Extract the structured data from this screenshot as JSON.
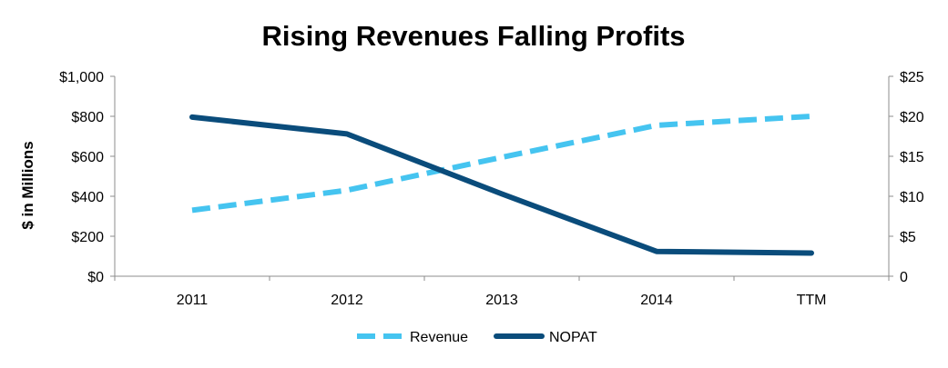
{
  "chart_data": {
    "type": "line",
    "title": "Rising Revenues Falling Profits",
    "ylabel": "$ in Millions",
    "categories": [
      "2011",
      "2012",
      "2013",
      "2014",
      "TTM"
    ],
    "y_left": {
      "lim": [
        0,
        1000
      ],
      "ticks": [
        0,
        200,
        400,
        600,
        800,
        1000
      ],
      "tick_labels": [
        "$0",
        "$200",
        "$400",
        "$600",
        "$800",
        "$1,000"
      ]
    },
    "y_right": {
      "lim": [
        0,
        25
      ],
      "ticks": [
        0,
        5,
        10,
        15,
        20,
        25
      ],
      "tick_labels": [
        "0",
        "$5",
        "$10",
        "$15",
        "$20",
        "$25"
      ]
    },
    "series": [
      {
        "name": "Revenue",
        "axis": "left",
        "values": [
          330,
          430,
          595,
          755,
          800
        ],
        "color": "#45c4f0",
        "style": "dashed"
      },
      {
        "name": "NOPAT",
        "axis": "right",
        "values": [
          19.9,
          17.8,
          10.3,
          3.1,
          2.9
        ],
        "color": "#0a4c7b",
        "style": "solid"
      }
    ],
    "grid": false,
    "legend_position": "bottom"
  }
}
